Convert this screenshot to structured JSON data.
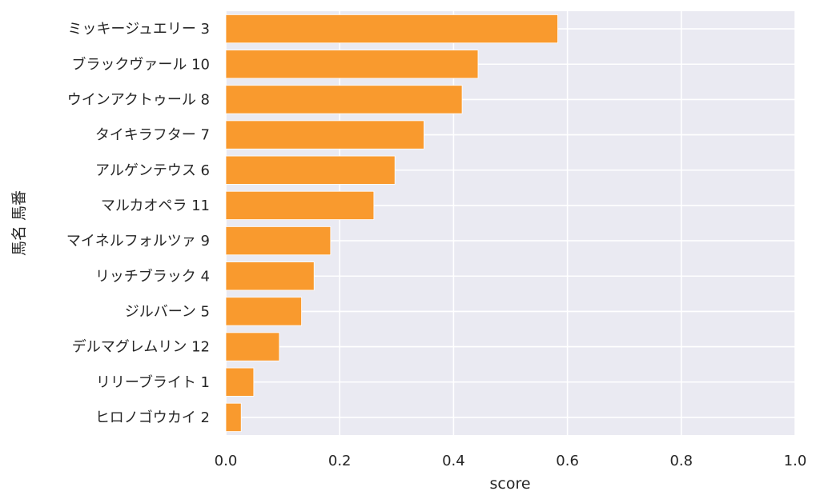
{
  "chart_data": {
    "type": "bar",
    "orientation": "horizontal",
    "categories": [
      "ミッキージュエリー 3",
      "ブラックヴァール 10",
      "ウインアクトゥール 8",
      "タイキラフター 7",
      "アルゲンテウス 6",
      "マルカオペラ 11",
      "マイネルフォルツァ 9",
      "リッチブラック 4",
      "ジルバーン 5",
      "デルマグレムリン 12",
      "リリーブライト 1",
      "ヒロノゴウカイ 2"
    ],
    "values": [
      0.583,
      0.443,
      0.415,
      0.348,
      0.297,
      0.26,
      0.184,
      0.155,
      0.133,
      0.094,
      0.049,
      0.027
    ],
    "xlabel": "score",
    "ylabel": "馬名 馬番",
    "xlim": [
      0,
      1.0
    ],
    "xticks": [
      "0.0",
      "0.2",
      "0.4",
      "0.6",
      "0.8",
      "1.0"
    ],
    "grid": true,
    "colors": {
      "bar": "#f99a2e",
      "background": "#eaeaf2",
      "grid": "#ffffff",
      "text": "#262626"
    }
  }
}
